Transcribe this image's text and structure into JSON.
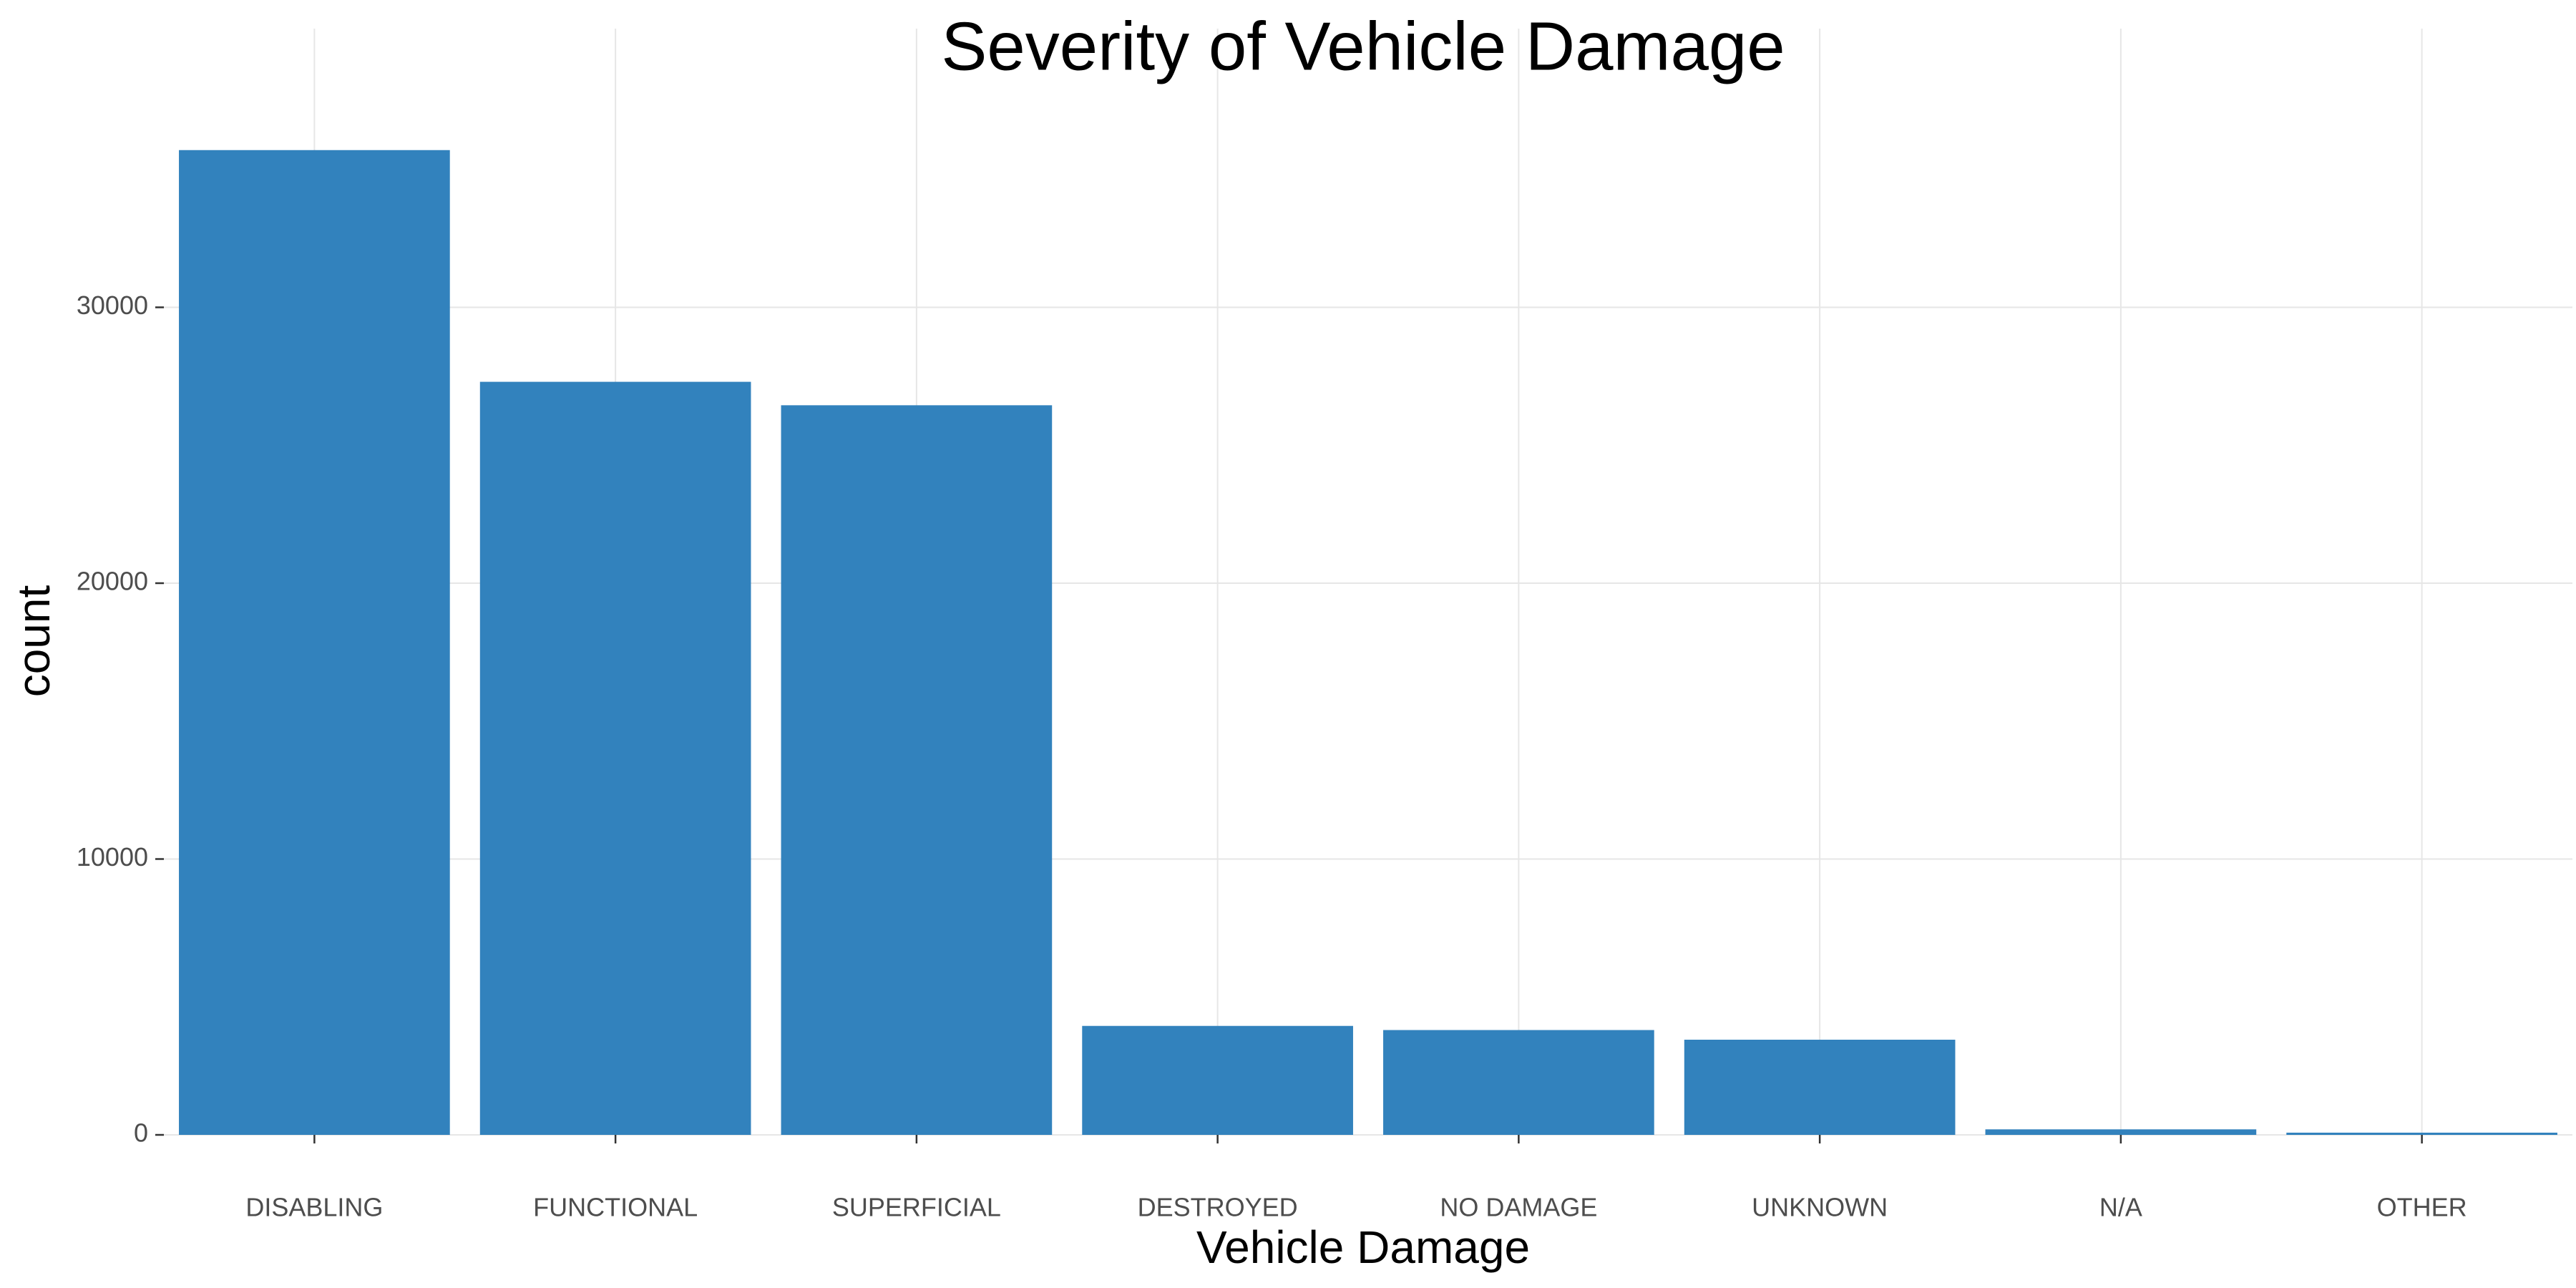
{
  "chart_data": {
    "type": "bar",
    "title": "Severity of Vehicle Damage",
    "xlabel": "Vehicle Damage",
    "ylabel": "count",
    "categories": [
      "DISABLING",
      "FUNCTIONAL",
      "SUPERFICIAL",
      "DESTROYED",
      "NO DAMAGE",
      "UNKNOWN",
      "N/A",
      "OTHER"
    ],
    "values": [
      35700,
      27300,
      26450,
      3950,
      3800,
      3450,
      200,
      80
    ],
    "ylim": [
      0,
      37500
    ],
    "yticks": [
      0,
      10000,
      20000,
      30000
    ],
    "grid": true,
    "legend": "none",
    "bar_color": "#3282BD"
  }
}
